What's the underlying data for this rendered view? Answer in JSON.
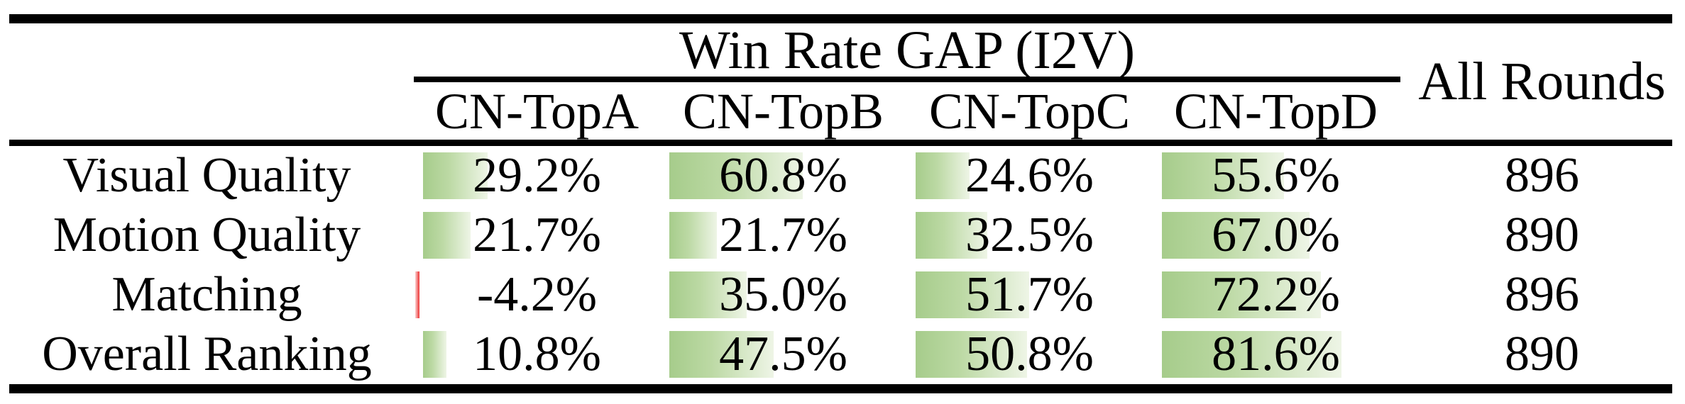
{
  "table": {
    "group_header": "Win Rate GAP (I2V)",
    "all_rounds_header": "All Rounds",
    "columns": [
      "CN-TopA",
      "CN-TopB",
      "CN-TopC",
      "CN-TopD"
    ],
    "rows": [
      {
        "label": "Visual Quality",
        "values": [
          29.2,
          60.8,
          24.6,
          55.6
        ],
        "display": [
          "29.2%",
          "60.8%",
          "24.6%",
          "55.6%"
        ],
        "all_rounds": "896"
      },
      {
        "label": "Motion Quality",
        "values": [
          21.7,
          21.7,
          32.5,
          67.0
        ],
        "display": [
          "21.7%",
          "21.7%",
          "32.5%",
          "67.0%"
        ],
        "all_rounds": "890"
      },
      {
        "label": "Matching",
        "values": [
          -4.2,
          35.0,
          51.7,
          72.2
        ],
        "display": [
          "-4.2%",
          "35.0%",
          "51.7%",
          "72.2%"
        ],
        "all_rounds": "896"
      },
      {
        "label": "Overall Ranking",
        "values": [
          10.8,
          47.5,
          50.8,
          81.6
        ],
        "display": [
          "10.8%",
          "47.5%",
          "50.8%",
          "81.6%"
        ],
        "all_rounds": "890"
      }
    ]
  },
  "colors": {
    "bar_green": "#a6cc8b",
    "bar_green_end": "#eef5e6",
    "bar_red": "#ee4747",
    "rule_black": "#000000"
  },
  "chart_data": {
    "type": "table",
    "title": "Win Rate GAP (I2V)",
    "categories": [
      "Visual Quality",
      "Motion Quality",
      "Matching",
      "Overall Ranking"
    ],
    "series": [
      {
        "name": "CN-TopA",
        "values": [
          29.2,
          21.7,
          -4.2,
          10.8
        ]
      },
      {
        "name": "CN-TopB",
        "values": [
          60.8,
          21.7,
          35.0,
          47.5
        ]
      },
      {
        "name": "CN-TopC",
        "values": [
          24.6,
          32.5,
          51.7,
          50.8
        ]
      },
      {
        "name": "CN-TopD",
        "values": [
          55.6,
          67.0,
          72.2,
          81.6
        ]
      }
    ],
    "all_rounds": [
      896,
      890,
      896,
      890
    ],
    "unit": "%",
    "notes": "in-cell data bars, green for positive, red for negative"
  }
}
